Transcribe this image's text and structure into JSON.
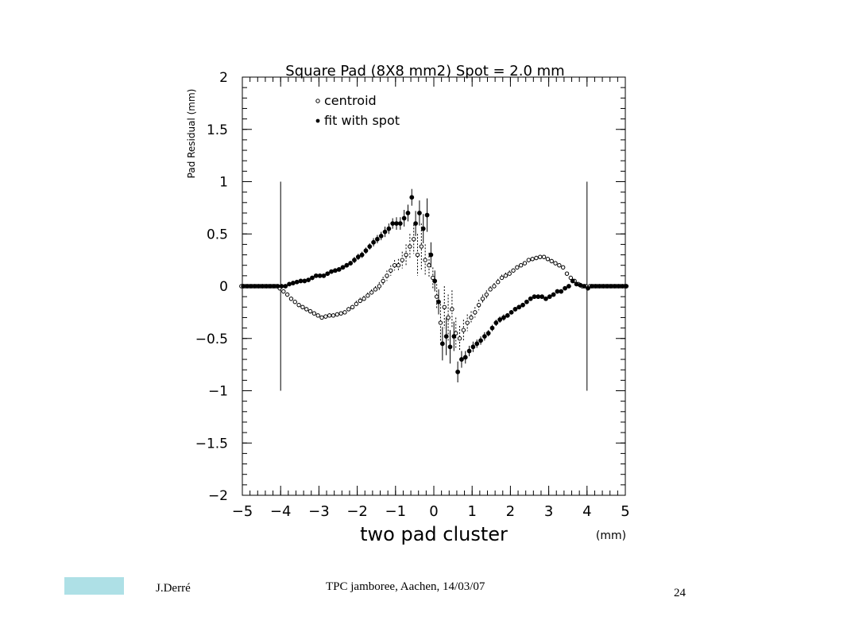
{
  "chart_data": {
    "type": "scatter",
    "title": "Square Pad (8X8 mm2) Spot = 2.0 mm",
    "xlabel": "two pad cluster",
    "xunit": "(mm)",
    "ylabel": "Pad Residual (mm)",
    "xlim": [
      -5,
      5
    ],
    "ylim": [
      -2,
      2
    ],
    "xticks": [
      "−5",
      "−4",
      "−3",
      "−2",
      "−1",
      "0",
      "1",
      "2",
      "3",
      "4",
      "5"
    ],
    "yticks": [
      "2",
      "1.5",
      "1",
      "0.5",
      "0",
      "−0.5",
      "−1",
      "−1.5",
      "−2"
    ],
    "legend": [
      "centroid",
      "fit with spot"
    ],
    "legend_position": "top-left",
    "grid": false,
    "boundary_lines_x": [
      -4,
      4
    ],
    "boundary_lines_y": [
      -1,
      1
    ],
    "series": [
      {
        "name": "centroid",
        "marker": "open-circle",
        "x": [
          -5.0,
          -4.9,
          -4.8,
          -4.7,
          -4.6,
          -4.5,
          -4.4,
          -4.3,
          -4.2,
          -4.1,
          -4.0,
          -3.9,
          -3.8,
          -3.7,
          -3.6,
          -3.5,
          -3.4,
          -3.3,
          -3.2,
          -3.1,
          -3.0,
          -2.9,
          -2.8,
          -2.7,
          -2.6,
          -2.5,
          -2.4,
          -2.3,
          -2.2,
          -2.1,
          -2.0,
          -1.9,
          -1.8,
          -1.7,
          -1.6,
          -1.5,
          -1.4,
          -1.3,
          -1.2,
          -1.1,
          -1.0,
          -0.9,
          -0.8,
          -0.7,
          -0.6,
          -0.5,
          -0.4,
          -0.3,
          -0.2,
          -0.1,
          0.0,
          0.1,
          0.2,
          0.3,
          0.4,
          0.5,
          0.6,
          0.7,
          0.8,
          0.9,
          1.0,
          1.1,
          1.2,
          1.3,
          1.4,
          1.5,
          1.6,
          1.7,
          1.8,
          1.9,
          2.0,
          2.1,
          2.2,
          2.3,
          2.4,
          2.5,
          2.6,
          2.7,
          2.8,
          2.9,
          3.0,
          3.1,
          3.2,
          3.3,
          3.4,
          3.5,
          3.6,
          3.7,
          3.8,
          3.9,
          4.0,
          4.1,
          4.2,
          4.3,
          4.4,
          4.5,
          4.6,
          4.7,
          4.8,
          4.9,
          5.0
        ],
        "y": [
          0.0,
          0.0,
          0.0,
          0.0,
          0.0,
          0.0,
          0.0,
          0.0,
          0.0,
          0.0,
          -0.02,
          -0.05,
          -0.08,
          -0.12,
          -0.15,
          -0.18,
          -0.2,
          -0.22,
          -0.24,
          -0.26,
          -0.28,
          -0.3,
          -0.29,
          -0.28,
          -0.28,
          -0.27,
          -0.26,
          -0.25,
          -0.22,
          -0.2,
          -0.17,
          -0.14,
          -0.12,
          -0.09,
          -0.06,
          -0.03,
          0.0,
          0.05,
          0.1,
          0.15,
          0.2,
          0.2,
          0.25,
          0.3,
          0.38,
          0.45,
          0.3,
          0.38,
          0.25,
          0.2,
          0.08,
          -0.1,
          -0.35,
          -0.2,
          -0.3,
          -0.22,
          -0.45,
          -0.5,
          -0.42,
          -0.35,
          -0.3,
          -0.25,
          -0.18,
          -0.12,
          -0.08,
          -0.03,
          0.0,
          0.04,
          0.08,
          0.1,
          0.12,
          0.15,
          0.18,
          0.2,
          0.22,
          0.25,
          0.26,
          0.27,
          0.28,
          0.28,
          0.26,
          0.24,
          0.22,
          0.2,
          0.18,
          0.12,
          0.08,
          0.05,
          0.02,
          0.0,
          0.0,
          0.0,
          0.0,
          0.0,
          0.0,
          0.0,
          0.0,
          0.0,
          0.0,
          0.0,
          0.0
        ],
        "err": [
          0.0,
          0.0,
          0.0,
          0.0,
          0.0,
          0.0,
          0.0,
          0.0,
          0.0,
          0.0,
          0.02,
          0.02,
          0.02,
          0.02,
          0.02,
          0.02,
          0.02,
          0.02,
          0.02,
          0.02,
          0.02,
          0.02,
          0.02,
          0.02,
          0.02,
          0.02,
          0.02,
          0.02,
          0.02,
          0.02,
          0.03,
          0.03,
          0.03,
          0.03,
          0.03,
          0.03,
          0.04,
          0.04,
          0.05,
          0.05,
          0.05,
          0.06,
          0.08,
          0.1,
          0.12,
          0.14,
          0.2,
          0.22,
          0.15,
          0.12,
          0.1,
          0.12,
          0.18,
          0.2,
          0.22,
          0.18,
          0.15,
          0.12,
          0.1,
          0.08,
          0.06,
          0.05,
          0.05,
          0.04,
          0.04,
          0.03,
          0.03,
          0.03,
          0.03,
          0.03,
          0.03,
          0.02,
          0.02,
          0.02,
          0.02,
          0.02,
          0.02,
          0.02,
          0.02,
          0.02,
          0.02,
          0.02,
          0.02,
          0.02,
          0.02,
          0.02,
          0.02,
          0.02,
          0.02,
          0.02,
          0.0,
          0.0,
          0.0,
          0.0,
          0.0,
          0.0,
          0.0,
          0.0,
          0.0,
          0.0,
          0.0
        ]
      },
      {
        "name": "fit with spot",
        "marker": "filled-circle",
        "x": [
          -5.0,
          -4.9,
          -4.8,
          -4.7,
          -4.6,
          -4.5,
          -4.4,
          -4.3,
          -4.2,
          -4.1,
          -4.0,
          -3.9,
          -3.8,
          -3.7,
          -3.6,
          -3.5,
          -3.4,
          -3.3,
          -3.2,
          -3.1,
          -3.0,
          -2.9,
          -2.8,
          -2.7,
          -2.6,
          -2.5,
          -2.4,
          -2.3,
          -2.2,
          -2.1,
          -2.0,
          -1.9,
          -1.8,
          -1.7,
          -1.6,
          -1.5,
          -1.4,
          -1.3,
          -1.2,
          -1.1,
          -1.0,
          -0.9,
          -0.8,
          -0.7,
          -0.6,
          -0.5,
          -0.4,
          -0.3,
          -0.2,
          -0.1,
          0.0,
          0.1,
          0.2,
          0.3,
          0.4,
          0.5,
          0.6,
          0.7,
          0.8,
          0.9,
          1.0,
          1.1,
          1.2,
          1.3,
          1.4,
          1.5,
          1.6,
          1.7,
          1.8,
          1.9,
          2.0,
          2.1,
          2.2,
          2.3,
          2.4,
          2.5,
          2.6,
          2.7,
          2.8,
          2.9,
          3.0,
          3.1,
          3.2,
          3.3,
          3.4,
          3.5,
          3.6,
          3.7,
          3.8,
          3.9,
          4.0,
          4.1,
          4.2,
          4.3,
          4.4,
          4.5,
          4.6,
          4.7,
          4.8,
          4.9,
          5.0
        ],
        "y": [
          0.0,
          0.0,
          0.0,
          0.0,
          0.0,
          0.0,
          0.0,
          0.0,
          0.0,
          0.0,
          0.0,
          0.0,
          0.02,
          0.03,
          0.04,
          0.05,
          0.05,
          0.06,
          0.08,
          0.1,
          0.1,
          0.1,
          0.12,
          0.14,
          0.15,
          0.16,
          0.18,
          0.2,
          0.22,
          0.25,
          0.28,
          0.3,
          0.34,
          0.38,
          0.42,
          0.45,
          0.48,
          0.52,
          0.55,
          0.6,
          0.6,
          0.6,
          0.65,
          0.7,
          0.85,
          0.6,
          0.7,
          0.55,
          0.68,
          0.3,
          0.05,
          -0.15,
          -0.55,
          -0.48,
          -0.58,
          -0.48,
          -0.82,
          -0.7,
          -0.68,
          -0.62,
          -0.58,
          -0.55,
          -0.52,
          -0.48,
          -0.45,
          -0.4,
          -0.35,
          -0.32,
          -0.3,
          -0.28,
          -0.25,
          -0.22,
          -0.2,
          -0.18,
          -0.15,
          -0.12,
          -0.1,
          -0.1,
          -0.1,
          -0.12,
          -0.1,
          -0.08,
          -0.05,
          -0.05,
          -0.02,
          0.0,
          0.05,
          0.02,
          0.01,
          0.0,
          -0.02,
          0.0,
          0.0,
          0.0,
          0.0,
          0.0,
          0.0,
          0.0,
          0.0,
          0.0,
          0.0
        ],
        "err": [
          0.0,
          0.0,
          0.0,
          0.0,
          0.0,
          0.0,
          0.0,
          0.0,
          0.0,
          0.0,
          0.0,
          0.0,
          0.02,
          0.02,
          0.02,
          0.02,
          0.02,
          0.02,
          0.02,
          0.02,
          0.02,
          0.02,
          0.02,
          0.02,
          0.02,
          0.02,
          0.02,
          0.02,
          0.02,
          0.03,
          0.03,
          0.03,
          0.03,
          0.03,
          0.04,
          0.04,
          0.04,
          0.05,
          0.05,
          0.05,
          0.06,
          0.06,
          0.08,
          0.08,
          0.08,
          0.12,
          0.12,
          0.14,
          0.16,
          0.12,
          0.1,
          0.12,
          0.16,
          0.18,
          0.16,
          0.14,
          0.1,
          0.08,
          0.06,
          0.05,
          0.05,
          0.04,
          0.04,
          0.04,
          0.03,
          0.03,
          0.03,
          0.03,
          0.03,
          0.02,
          0.02,
          0.02,
          0.02,
          0.02,
          0.02,
          0.02,
          0.02,
          0.02,
          0.02,
          0.02,
          0.02,
          0.02,
          0.02,
          0.02,
          0.02,
          0.02,
          0.02,
          0.02,
          0.02,
          0.02,
          0.02,
          0.0,
          0.0,
          0.0,
          0.0,
          0.0,
          0.0,
          0.0,
          0.0,
          0.0,
          0.0
        ]
      }
    ]
  },
  "footer": {
    "author": "J.Derré",
    "event": "TPC jamboree, Aachen, 14/03/07",
    "page": "24",
    "swatch_color": "#aee0e6"
  }
}
